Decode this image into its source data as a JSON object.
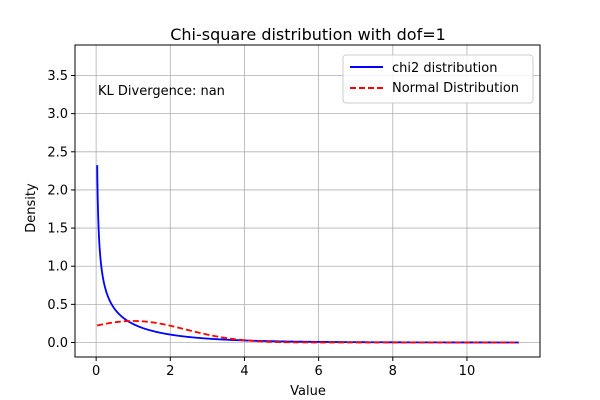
{
  "chart_data": {
    "type": "line",
    "title": "Chi-square distribution with dof=1",
    "xlabel": "Value",
    "ylabel": "Density",
    "xlim": [
      -0.57,
      11.97
    ],
    "ylim": [
      -0.19,
      3.9
    ],
    "xticks": [
      0,
      2,
      4,
      6,
      8,
      10
    ],
    "xtick_labels": [
      "0",
      "2",
      "4",
      "6",
      "8",
      "10"
    ],
    "yticks": [
      0.0,
      0.5,
      1.0,
      1.5,
      2.0,
      2.5,
      3.0,
      3.5
    ],
    "ytick_labels": [
      "0.0",
      "0.5",
      "1.0",
      "1.5",
      "2.0",
      "2.5",
      "3.0",
      "3.5"
    ],
    "grid": true,
    "legend_position": "top-right",
    "annotation": {
      "text": "KL Divergence: nan",
      "x": 0.05,
      "y": 3.3,
      "color": "#008000"
    },
    "series": [
      {
        "name": "chi2 distribution",
        "color": "#0000ff",
        "style": "solid",
        "function": "chi2_pdf_dof1",
        "x_start": 0.0286,
        "x_end": 11.4
      },
      {
        "name": "Normal Distribution",
        "color": "#ff0000",
        "style": "dashed",
        "function": "normal_pdf",
        "mean": 1.0,
        "std": 1.414,
        "x_start": 0.0286,
        "x_end": 11.4
      }
    ]
  }
}
